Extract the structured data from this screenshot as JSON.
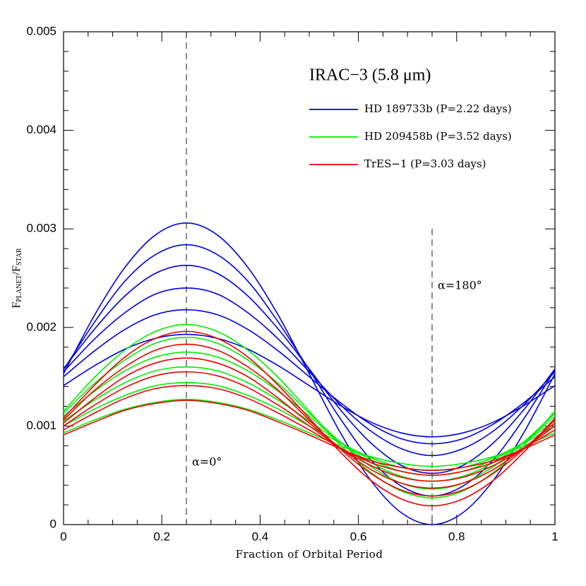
{
  "chart_data": {
    "type": "line",
    "title": "IRAC−3 (5.8 μm)",
    "xlabel": "Fraction of Orbital Period",
    "ylabel": {
      "f1": "F",
      "sub1": "PLANET",
      "f2": "/F",
      "sub2": "STAR"
    },
    "legend": "upper right",
    "xlim": [
      0,
      1
    ],
    "ylim": [
      0,
      0.005
    ],
    "xticks": [
      0,
      0.2,
      0.4,
      0.6,
      0.8,
      1
    ],
    "yticks": [
      0,
      0.001,
      0.002,
      0.003,
      0.004,
      0.005
    ],
    "xminorticks": [
      0.05,
      0.1,
      0.15,
      0.25,
      0.3,
      0.35,
      0.45,
      0.5,
      0.55,
      0.65,
      0.7,
      0.75,
      0.85,
      0.9,
      0.95
    ],
    "yminorticks": [
      0.0002,
      0.0004,
      0.0006,
      0.0008,
      0.0012,
      0.0014,
      0.0016,
      0.0018,
      0.0022,
      0.0024,
      0.0026,
      0.0028,
      0.0032,
      0.0034,
      0.0036,
      0.0038,
      0.0042,
      0.0044,
      0.0046,
      0.0048
    ],
    "vlines": [
      {
        "x": 0.25,
        "label": "α=0°"
      },
      {
        "x": 0.75,
        "ymax": 0.003,
        "label": "α=180°"
      }
    ],
    "x": [
      0,
      0.0625,
      0.125,
      0.1875,
      0.25,
      0.3125,
      0.375,
      0.4375,
      0.5,
      0.5625,
      0.625,
      0.6875,
      0.75,
      0.8125,
      0.875,
      0.9375,
      1
    ],
    "series": [
      {
        "name": "HD 189733b (P=2.22 days)",
        "color": "#0000dd",
        "curves": [
          [
            0.00153,
            0.00212,
            0.00261,
            0.00294,
            0.00306,
            0.00294,
            0.00261,
            0.00212,
            0.00153,
            0.00094,
            0.00045,
            0.00012,
            0,
            0.00012,
            0.00045,
            0.00094,
            0.00153
          ],
          [
            0.00157,
            0.00205,
            0.00247,
            0.00274,
            0.00284,
            0.00274,
            0.00247,
            0.00205,
            0.00157,
            0.00108,
            0.00066,
            0.00039,
            0.00029,
            0.00039,
            0.00066,
            0.00108,
            0.00157
          ],
          [
            0.00158,
            0.00198,
            0.00232,
            0.00255,
            0.00263,
            0.00255,
            0.00232,
            0.00198,
            0.00158,
            0.00117,
            0.00083,
            0.0006,
            0.00052,
            0.0006,
            0.00083,
            0.00117,
            0.00158
          ],
          [
            0.00155,
            0.00188,
            0.00215,
            0.00234,
            0.0024,
            0.00234,
            0.00215,
            0.00188,
            0.00155,
            0.00122,
            0.00095,
            0.00077,
            0.0007,
            0.00077,
            0.00095,
            0.00122,
            0.00155
          ],
          [
            0.0015,
            0.00176,
            0.00198,
            0.00213,
            0.00218,
            0.00213,
            0.00198,
            0.00176,
            0.0015,
            0.00124,
            0.00102,
            0.00087,
            0.00082,
            0.00087,
            0.00102,
            0.00124,
            0.0015
          ],
          [
            0.00141,
            0.00161,
            0.00178,
            0.00189,
            0.00193,
            0.00189,
            0.00178,
            0.00161,
            0.00141,
            0.00121,
            0.00104,
            0.00093,
            0.00089,
            0.00093,
            0.00104,
            0.00121,
            0.00141
          ]
        ]
      },
      {
        "name": "HD 209458b (P=3.52 days)",
        "color": "#00ee00",
        "curves": [
          [
            0.00115,
            0.00149,
            0.00177,
            0.00196,
            0.00203,
            0.00196,
            0.00177,
            0.00149,
            0.00115,
            0.00081,
            0.00053,
            0.00034,
            0.00027,
            0.00034,
            0.00053,
            0.00081,
            0.00115
          ],
          [
            0.00113,
            0.00143,
            0.00167,
            0.00184,
            0.0019,
            0.00184,
            0.00167,
            0.00143,
            0.00113,
            0.00084,
            0.00059,
            0.00042,
            0.00036,
            0.00042,
            0.00059,
            0.00084,
            0.00113
          ],
          [
            0.0011,
            0.00135,
            0.00156,
            0.0017,
            0.00175,
            0.0017,
            0.00156,
            0.00135,
            0.0011,
            0.00084,
            0.00063,
            0.00049,
            0.00044,
            0.00049,
            0.00063,
            0.00084,
            0.0011
          ],
          [
            0.00105,
            0.00126,
            0.00144,
            0.00156,
            0.0016,
            0.00156,
            0.00144,
            0.00126,
            0.00105,
            0.00084,
            0.00066,
            0.00054,
            0.0005,
            0.00054,
            0.00066,
            0.00084,
            0.00105
          ],
          [
            0.001,
            0.00117,
            0.00131,
            0.00141,
            0.00144,
            0.00141,
            0.00131,
            0.00117,
            0.001,
            0.00083,
            0.00068,
            0.00058,
            0.00055,
            0.00058,
            0.00068,
            0.00083,
            0.001
          ],
          [
            0.00093,
            0.00106,
            0.00117,
            0.00124,
            0.00127,
            0.00124,
            0.00117,
            0.00106,
            0.00093,
            0.0008,
            0.00069,
            0.00062,
            0.00059,
            0.00062,
            0.00069,
            0.0008,
            0.00093
          ]
        ]
      },
      {
        "name": "TrES−1 (P=3.03 days)",
        "color": "#ee0000",
        "curves": [
          [
            0.00108,
            0.00141,
            0.0017,
            0.00189,
            0.00196,
            0.00189,
            0.0017,
            0.00141,
            0.00108,
            0.00074,
            0.00045,
            0.00026,
            0.00019,
            0.00026,
            0.00045,
            0.00074,
            0.00108
          ],
          [
            0.00106,
            0.00136,
            0.0016,
            0.00177,
            0.00183,
            0.00177,
            0.0016,
            0.00136,
            0.00106,
            0.00077,
            0.00052,
            0.00035,
            0.00029,
            0.00035,
            0.00052,
            0.00077,
            0.00106
          ],
          [
            0.00103,
            0.00128,
            0.0015,
            0.00164,
            0.00169,
            0.00164,
            0.0015,
            0.00128,
            0.00103,
            0.00078,
            0.00056,
            0.00042,
            0.00037,
            0.00042,
            0.00056,
            0.00078,
            0.00103
          ],
          [
            0.001,
            0.00121,
            0.00139,
            0.00151,
            0.00155,
            0.00151,
            0.00139,
            0.00121,
            0.001,
            0.00078,
            0.0006,
            0.00048,
            0.00044,
            0.00048,
            0.0006,
            0.00078,
            0.001
          ],
          [
            0.00096,
            0.00113,
            0.00128,
            0.00138,
            0.00141,
            0.00138,
            0.00128,
            0.00113,
            0.00096,
            0.00078,
            0.00063,
            0.00054,
            0.0005,
            0.00054,
            0.00063,
            0.00078,
            0.00096
          ],
          [
            0.00091,
            0.00104,
            0.00116,
            0.00123,
            0.00126,
            0.00123,
            0.00116,
            0.00104,
            0.00091,
            0.00077,
            0.00065,
            0.00058,
            0.00055,
            0.00058,
            0.00065,
            0.00077,
            0.00091
          ]
        ]
      }
    ]
  }
}
